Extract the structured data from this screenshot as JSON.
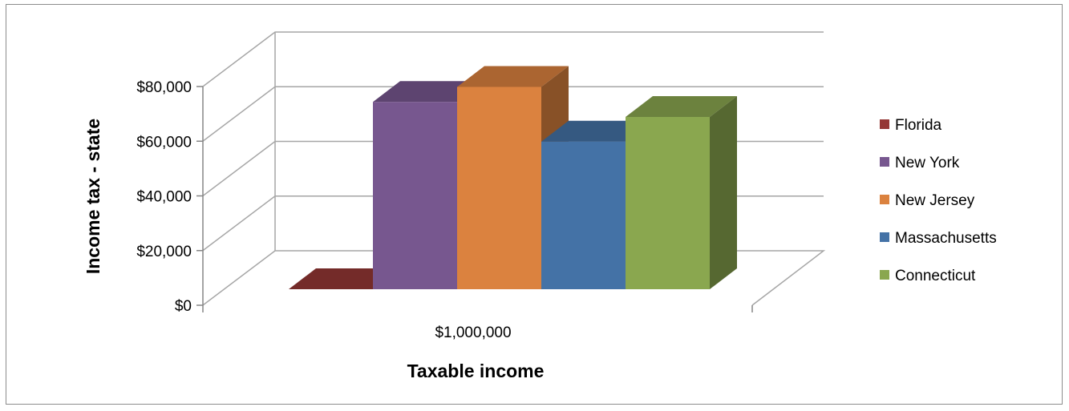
{
  "chart_data": {
    "type": "bar",
    "style": "3d-clustered-column",
    "title": "",
    "xlabel": "Taxable income",
    "ylabel": "Income  tax - state",
    "categories": [
      "$1,000,000"
    ],
    "ylim": [
      0,
      80000
    ],
    "yticks": [
      "$0",
      "$20,000",
      "$40,000",
      "$60,000",
      "$80,000"
    ],
    "ytick_values": [
      0,
      20000,
      40000,
      60000,
      80000
    ],
    "grid": true,
    "legend": "right",
    "series": [
      {
        "name": "Florida",
        "values": [
          0
        ],
        "color": "#953735"
      },
      {
        "name": "New York",
        "values": [
          68500
        ],
        "color": "#77578F"
      },
      {
        "name": "New Jersey",
        "values": [
          74000
        ],
        "color": "#DB823F"
      },
      {
        "name": "Massachusetts",
        "values": [
          54000
        ],
        "color": "#4472A6"
      },
      {
        "name": "Connecticut",
        "values": [
          63000
        ],
        "color": "#8AA74F"
      }
    ]
  }
}
